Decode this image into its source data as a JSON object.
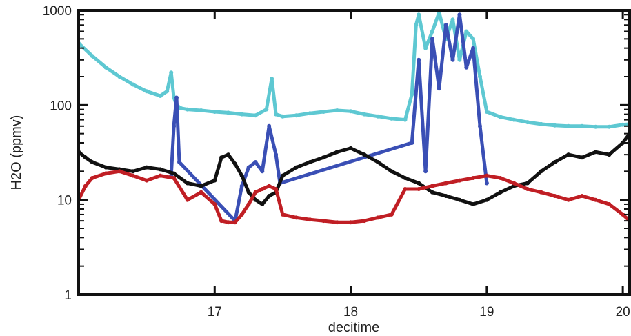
{
  "chart_data": {
    "type": "scatter",
    "title": "",
    "xlabel": "decitime",
    "ylabel": "H2O (ppmv)",
    "xlim": [
      16.0,
      20.05
    ],
    "ylim": [
      1,
      1000
    ],
    "y_scale": "log",
    "grid": false,
    "legend": "none",
    "x_ticks": [
      17,
      18,
      19,
      20
    ],
    "x_tick_labels": [
      "17",
      "18",
      "19",
      "20"
    ],
    "y_ticks": [
      1,
      10,
      100,
      1000
    ],
    "y_tick_labels": [
      "1",
      "10",
      "100",
      "1000"
    ],
    "series": [
      {
        "color": "#5ec8d2",
        "x": [
          16.0,
          16.1,
          16.2,
          16.3,
          16.4,
          16.5,
          16.6,
          16.65,
          16.68,
          16.7,
          16.72,
          16.75,
          16.8,
          16.9,
          17.0,
          17.1,
          17.2,
          17.3,
          17.38,
          17.42,
          17.45,
          17.5,
          17.6,
          17.7,
          17.8,
          17.9,
          18.0,
          18.1,
          18.2,
          18.3,
          18.4,
          18.45,
          18.48,
          18.5,
          18.55,
          18.6,
          18.65,
          18.7,
          18.75,
          18.8,
          18.85,
          18.9,
          18.95,
          19.0,
          19.1,
          19.2,
          19.3,
          19.4,
          19.5,
          19.6,
          19.7,
          19.8,
          19.9,
          20.0,
          20.05
        ],
        "y": [
          450,
          330,
          250,
          200,
          165,
          140,
          125,
          140,
          220,
          120,
          100,
          93,
          90,
          88,
          85,
          83,
          80,
          78,
          90,
          190,
          80,
          76,
          78,
          82,
          85,
          88,
          86,
          80,
          76,
          72,
          70,
          130,
          700,
          900,
          400,
          600,
          950,
          500,
          800,
          300,
          600,
          500,
          200,
          85,
          75,
          70,
          66,
          63,
          61,
          60,
          60,
          59,
          59,
          62,
          63
        ]
      },
      {
        "color": "#3a4fb5",
        "x": [
          16.68,
          16.7,
          16.72,
          16.74,
          17.15,
          17.2,
          17.25,
          17.3,
          17.35,
          17.4,
          17.45,
          17.48,
          18.45,
          18.5,
          18.55,
          18.6,
          18.65,
          18.7,
          18.75,
          18.8,
          18.85,
          18.9,
          18.95,
          19.0
        ],
        "y": [
          18,
          60,
          120,
          25,
          6,
          14,
          22,
          25,
          20,
          60,
          30,
          15,
          40,
          300,
          20,
          500,
          150,
          700,
          300,
          900,
          250,
          400,
          60,
          15
        ]
      },
      {
        "color": "#111111",
        "x": [
          16.0,
          16.05,
          16.1,
          16.2,
          16.3,
          16.4,
          16.5,
          16.6,
          16.7,
          16.8,
          16.9,
          17.0,
          17.05,
          17.1,
          17.15,
          17.2,
          17.25,
          17.3,
          17.35,
          17.4,
          17.45,
          17.5,
          17.6,
          17.7,
          17.8,
          17.9,
          18.0,
          18.1,
          18.2,
          18.3,
          18.4,
          18.5,
          18.6,
          18.7,
          18.8,
          18.9,
          19.0,
          19.1,
          19.2,
          19.3,
          19.4,
          19.5,
          19.6,
          19.7,
          19.8,
          19.9,
          20.0,
          20.05
        ],
        "y": [
          32,
          28,
          25,
          22,
          21,
          20,
          22,
          21,
          19,
          15,
          14,
          16,
          28,
          30,
          24,
          18,
          12,
          10,
          9,
          11,
          12,
          18,
          22,
          25,
          28,
          32,
          35,
          30,
          25,
          20,
          17,
          15,
          12,
          11,
          10,
          9,
          10,
          12,
          14,
          15,
          20,
          25,
          30,
          28,
          32,
          30,
          40,
          50
        ]
      },
      {
        "color": "#c01e24",
        "x": [
          16.0,
          16.05,
          16.1,
          16.2,
          16.3,
          16.4,
          16.5,
          16.6,
          16.7,
          16.8,
          16.9,
          17.0,
          17.05,
          17.1,
          17.15,
          17.2,
          17.25,
          17.3,
          17.35,
          17.4,
          17.45,
          17.5,
          17.6,
          17.7,
          17.8,
          17.9,
          18.0,
          18.1,
          18.2,
          18.3,
          18.4,
          18.5,
          18.6,
          18.7,
          18.8,
          18.9,
          19.0,
          19.1,
          19.2,
          19.3,
          19.4,
          19.5,
          19.6,
          19.7,
          19.8,
          19.9,
          20.0,
          20.05
        ],
        "y": [
          10,
          14,
          17,
          19,
          20,
          18,
          16,
          18,
          17,
          10,
          12,
          9,
          6,
          5.8,
          5.8,
          7,
          9,
          12,
          13,
          14,
          13,
          7,
          6.5,
          6.2,
          6.0,
          5.8,
          5.8,
          6.0,
          6.5,
          7,
          13,
          13,
          14,
          15,
          16,
          17,
          18,
          17,
          15,
          13,
          12,
          11,
          10,
          11,
          10,
          9,
          7,
          6
        ]
      }
    ]
  }
}
